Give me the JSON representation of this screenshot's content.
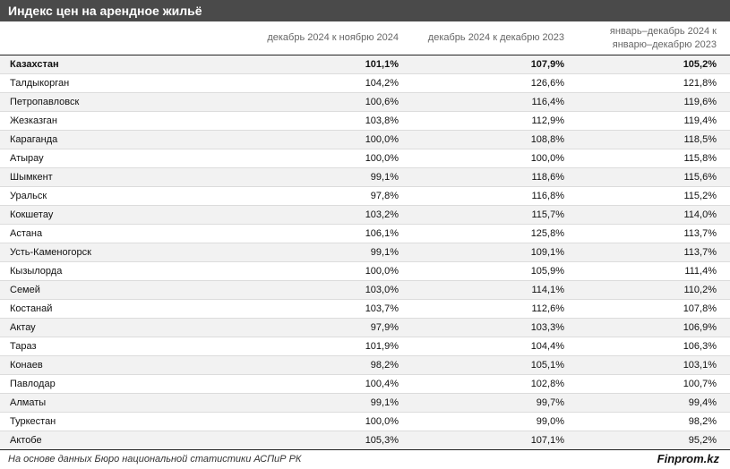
{
  "title": "Индекс цен на арендное жильё",
  "columns": [
    "",
    "декабрь 2024 к ноябрю 2024",
    "декабрь 2024 к декабрю 2023",
    "январь–декабрь 2024 к январю–декабрю 2023"
  ],
  "rows": [
    {
      "name": "Казахстан",
      "v1": "101,1%",
      "v2": "107,9%",
      "v3": "105,2%",
      "bold": true
    },
    {
      "name": "Талдыкорган",
      "v1": "104,2%",
      "v2": "126,6%",
      "v3": "121,8%"
    },
    {
      "name": "Петропавловск",
      "v1": "100,6%",
      "v2": "116,4%",
      "v3": "119,6%"
    },
    {
      "name": "Жезказган",
      "v1": "103,8%",
      "v2": "112,9%",
      "v3": "119,4%"
    },
    {
      "name": "Караганда",
      "v1": "100,0%",
      "v2": "108,8%",
      "v3": "118,5%"
    },
    {
      "name": "Атырау",
      "v1": "100,0%",
      "v2": "100,0%",
      "v3": "115,8%"
    },
    {
      "name": "Шымкент",
      "v1": "99,1%",
      "v2": "118,6%",
      "v3": "115,6%"
    },
    {
      "name": "Уральск",
      "v1": "97,8%",
      "v2": "116,8%",
      "v3": "115,2%"
    },
    {
      "name": "Кокшетау",
      "v1": "103,2%",
      "v2": "115,7%",
      "v3": "114,0%"
    },
    {
      "name": "Астана",
      "v1": "106,1%",
      "v2": "125,8%",
      "v3": "113,7%"
    },
    {
      "name": "Усть-Каменогорск",
      "v1": "99,1%",
      "v2": "109,1%",
      "v3": "113,7%"
    },
    {
      "name": "Кызылорда",
      "v1": "100,0%",
      "v2": "105,9%",
      "v3": "111,4%"
    },
    {
      "name": "Семей",
      "v1": "103,0%",
      "v2": "114,1%",
      "v3": "110,2%"
    },
    {
      "name": "Костанай",
      "v1": "103,7%",
      "v2": "112,6%",
      "v3": "107,8%"
    },
    {
      "name": "Актау",
      "v1": "97,9%",
      "v2": "103,3%",
      "v3": "106,9%"
    },
    {
      "name": "Тараз",
      "v1": "101,9%",
      "v2": "104,4%",
      "v3": "106,3%"
    },
    {
      "name": "Конаев",
      "v1": "98,2%",
      "v2": "105,1%",
      "v3": "103,1%"
    },
    {
      "name": "Павлодар",
      "v1": "100,4%",
      "v2": "102,8%",
      "v3": "100,7%"
    },
    {
      "name": "Алматы",
      "v1": "99,1%",
      "v2": "99,7%",
      "v3": "99,4%"
    },
    {
      "name": "Туркестан",
      "v1": "100,0%",
      "v2": "99,0%",
      "v3": "98,2%"
    },
    {
      "name": "Актобе",
      "v1": "105,3%",
      "v2": "107,1%",
      "v3": "95,2%"
    }
  ],
  "footer": {
    "source": "На основе данных Бюро национальной статистики АСПиР РК",
    "brand": "Finprom.kz"
  }
}
